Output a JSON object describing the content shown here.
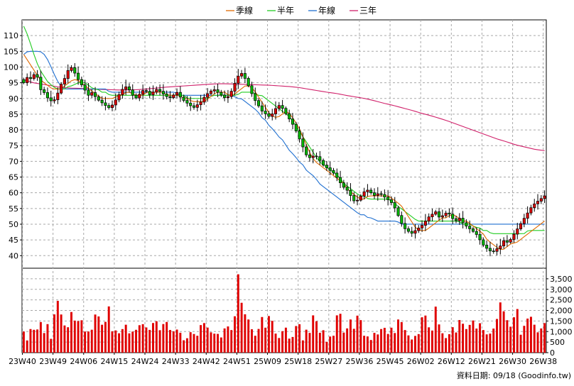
{
  "chart_data": {
    "type": "candlestick",
    "legend": [
      {
        "name": "季線",
        "color": "#e06a00"
      },
      {
        "name": "半年",
        "color": "#22cc22"
      },
      {
        "name": "年線",
        "color": "#1f6fd0"
      },
      {
        "name": "三年",
        "color": "#d0206a"
      }
    ],
    "price_axis": {
      "ylim": [
        36,
        115
      ],
      "ticks": [
        40,
        45,
        50,
        55,
        60,
        65,
        70,
        75,
        80,
        85,
        90,
        95,
        100,
        105,
        110
      ]
    },
    "volume_axis": {
      "ylim": [
        0,
        4000
      ],
      "ticks": [
        "0",
        "500",
        "1,000",
        "1,500",
        "2,000",
        "2,500",
        "3,000",
        "3,500"
      ]
    },
    "x_tick_labels": [
      "23W40",
      "23W49",
      "24W06",
      "24W15",
      "24W24",
      "24W33",
      "24W42",
      "24W51",
      "25W09",
      "25W18",
      "25W27",
      "25W36",
      "25W45",
      "26W02",
      "26W12",
      "26W21",
      "26W30",
      "26W38"
    ],
    "x_tick_index": [
      0,
      9,
      18,
      27,
      36,
      45,
      54,
      63,
      72,
      81,
      90,
      99,
      108,
      117,
      126,
      135,
      144,
      153
    ],
    "close": [
      95,
      97,
      96,
      99,
      93,
      92,
      90,
      89,
      90,
      94,
      96,
      99,
      100,
      97,
      95,
      93,
      91,
      92,
      90,
      89,
      88,
      87,
      88,
      90,
      92,
      94,
      93,
      91,
      90,
      92,
      93,
      91,
      92,
      93,
      92,
      91,
      90,
      91,
      92,
      90,
      89,
      88,
      87,
      88,
      89,
      91,
      92,
      93,
      92,
      91,
      90,
      91,
      94,
      97,
      98,
      96,
      93,
      90,
      88,
      86,
      85,
      84,
      86,
      88,
      87,
      85,
      83,
      81,
      78,
      75,
      72,
      71,
      72,
      71,
      69,
      68,
      67,
      66,
      64,
      62,
      61,
      59,
      57,
      58,
      60,
      61,
      60,
      59,
      60,
      59,
      58,
      57,
      55,
      52,
      49,
      48,
      47,
      48,
      49,
      50,
      52,
      53,
      54,
      52,
      53,
      54,
      52,
      51,
      52,
      50,
      49,
      48,
      47,
      45,
      43,
      42,
      41,
      42,
      43,
      45,
      44,
      46,
      48,
      50,
      52,
      54,
      56,
      57,
      58,
      59
    ],
    "volume": [
      1000,
      500,
      1400,
      800,
      1600,
      900,
      1400,
      400,
      2800,
      2000,
      1300,
      1200,
      2100,
      1200,
      1800,
      1000,
      1000,
      1100,
      2100,
      1400,
      1200,
      2300,
      900,
      1100,
      800,
      1500,
      900,
      1000,
      1100,
      1400,
      1300,
      1000,
      1400,
      1500,
      900,
      1700,
      1100,
      1000,
      1100,
      900,
      400,
      1000,
      900,
      800,
      1400,
      1400,
      1000,
      900,
      900,
      700,
      1300,
      1200,
      900,
      3900,
      2300,
      1700,
      1500,
      700,
      1000,
      1700,
      1100,
      2000,
      1100,
      600,
      1000,
      1200,
      500,
      900,
      1700,
      500,
      1100,
      900,
      2200,
      800,
      1200,
      500,
      800,
      800,
      2500,
      900,
      1100,
      1600,
      1000,
      2200,
      800,
      800,
      600,
      1000,
      800,
      1400,
      800,
      1200,
      900,
      1800,
      1200,
      900,
      600,
      800,
      900,
      2100,
      1400,
      800,
      2200,
      1200,
      800,
      600,
      1300,
      900,
      1600,
      1300,
      1000,
      1700,
      1100,
      1400,
      1000,
      800,
      1000,
      1400,
      2400,
      1900,
      1400,
      1100,
      2500,
      800,
      1300,
      1700,
      1700,
      900,
      1100,
      1400
    ],
    "ma_quarter": [
      104,
      102,
      100,
      98,
      96,
      95,
      94,
      93,
      93,
      93,
      94,
      95,
      96,
      96,
      95,
      94,
      93,
      92,
      91,
      90,
      90,
      90,
      90,
      91,
      91,
      92,
      92,
      91,
      91,
      91,
      92,
      92,
      92,
      92,
      92,
      91,
      91,
      91,
      91,
      90,
      90,
      89,
      89,
      89,
      89,
      90,
      91,
      92,
      92,
      92,
      91,
      91,
      92,
      93,
      94,
      94,
      93,
      91,
      89,
      87,
      85,
      84,
      84,
      85,
      86,
      85,
      83,
      81,
      78,
      75,
      72,
      70,
      69,
      68,
      67,
      66,
      65,
      64,
      63,
      61,
      60,
      59,
      58,
      58,
      59,
      59,
      59,
      59,
      59,
      59,
      58,
      57,
      56,
      54,
      52,
      50,
      48,
      48,
      48,
      49,
      50,
      51,
      52,
      52,
      53,
      53,
      52,
      51,
      51,
      50,
      49,
      48,
      47,
      45,
      44,
      43,
      42,
      42,
      43,
      44,
      44,
      45,
      46,
      47,
      48,
      49,
      50,
      51
    ],
    "ma_half": [
      113,
      110,
      106,
      102,
      99,
      97,
      95,
      94,
      93,
      93,
      93,
      94,
      94,
      95,
      95,
      95,
      94,
      93,
      93,
      92,
      92,
      91,
      91,
      91,
      91,
      91,
      91,
      91,
      91,
      91,
      91,
      91,
      91,
      91,
      91,
      91,
      91,
      91,
      91,
      91,
      90,
      90,
      90,
      90,
      90,
      90,
      91,
      91,
      91,
      91,
      91,
      91,
      91,
      92,
      92,
      92,
      92,
      91,
      91,
      90,
      89,
      88,
      87,
      86,
      85,
      84,
      82,
      80,
      78,
      76,
      74,
      72,
      70,
      69,
      68,
      67,
      66,
      65,
      63,
      62,
      61,
      60,
      59,
      59,
      58,
      58,
      58,
      58,
      58,
      58,
      57,
      56,
      55,
      54,
      53,
      52,
      51,
      51,
      51,
      51,
      51,
      51,
      51,
      51,
      51,
      51,
      51,
      50,
      50,
      50,
      49,
      49,
      48,
      48,
      47,
      47,
      47,
      47,
      47,
      47,
      47,
      47,
      47,
      48,
      48,
      48,
      48,
      48
    ],
    "ma_year": [
      104,
      105,
      105,
      105,
      105,
      104,
      102,
      99,
      96,
      94,
      93,
      93,
      93,
      93,
      93,
      93,
      93,
      93,
      93,
      93,
      93,
      92,
      92,
      92,
      92,
      92,
      92,
      92,
      92,
      92,
      92,
      92,
      92,
      92,
      92,
      92,
      92,
      92,
      91,
      91,
      91,
      91,
      91,
      91,
      91,
      91,
      91,
      91,
      91,
      91,
      91,
      91,
      90,
      90,
      89,
      88,
      87,
      86,
      84,
      83,
      81,
      80,
      78,
      77,
      75,
      73,
      72,
      70,
      69,
      67,
      66,
      65,
      63,
      62,
      61,
      60,
      59,
      58,
      57,
      56,
      55,
      54,
      53,
      53,
      52,
      52,
      51,
      51,
      51,
      51,
      51,
      51,
      50,
      50,
      50,
      50,
      50,
      50,
      50,
      50,
      50,
      50,
      50,
      50,
      50,
      50,
      50,
      50,
      50,
      50,
      50,
      50,
      50,
      50,
      50,
      50,
      50,
      50,
      50,
      50,
      50,
      50,
      50,
      50,
      50,
      50,
      50,
      50
    ],
    "ma_3year": [
      96,
      95,
      94.5,
      94,
      93.5,
      93.3,
      93.2,
      93,
      92.9,
      92.8,
      92.7,
      92.7,
      92.8,
      93,
      93.3,
      93.6,
      93.8,
      94,
      94.2,
      94.4,
      94.6,
      94.7,
      94.6,
      94.5,
      94.4,
      94.3,
      94.2,
      94,
      93.8,
      93.5,
      93,
      92.5,
      92,
      91.6,
      91,
      90.5,
      90,
      89.3,
      88.5,
      87.8,
      87,
      86.2,
      85.3,
      84.5,
      83.6,
      82.6,
      81.5,
      80.4,
      79.3,
      78.2,
      77.1,
      76.2,
      75.2,
      74.5,
      73.8,
      73.4
    ],
    "footer_text": "資料日期: 09/18 (Goodinfo.tw)"
  }
}
